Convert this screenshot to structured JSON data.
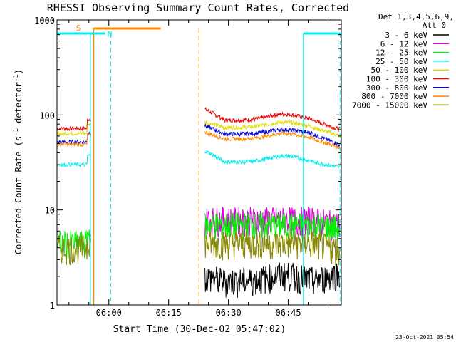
{
  "chart_data": {
    "type": "line",
    "title": "RHESSI Observing Summary Count Rates, Corrected",
    "xlabel": "Start Time (30-Dec-02 05:47:02)",
    "ylabel_pre": "Corrected Count Rate (s",
    "ylabel_sup": "-1",
    "ylabel_post": " detector",
    "ylabel_sup2": "-1",
    "ylabel_end": ")",
    "y_scale": "log",
    "ylim": [
      1,
      1000
    ],
    "xlim_minutes_after_0547": [
      0,
      71.3
    ],
    "x_ticks": [
      {
        "label": "06:00",
        "t": 13
      },
      {
        "label": "06:15",
        "t": 28
      },
      {
        "label": "06:30",
        "t": 43
      },
      {
        "label": "06:45",
        "t": 58
      },
      {
        "label": "07:00",
        "t": 73
      },
      {
        "label": "07:15",
        "t": 88
      }
    ],
    "y_ticks": [
      {
        "label": "1",
        "v": 1
      },
      {
        "label": "10",
        "v": 10
      },
      {
        "label": "100",
        "v": 100
      },
      {
        "label": "1000",
        "v": 1000
      }
    ],
    "legend_header": [
      "Det 1,3,4,5,6,9,",
      "Att 0"
    ],
    "legend": [
      {
        "name": "3 - 6 keV",
        "color": "#000000"
      },
      {
        "name": "6 - 12 keV",
        "color": "#dd00dd"
      },
      {
        "name": "12 - 25 keV",
        "color": "#00ee00"
      },
      {
        "name": "25 - 50 keV",
        "color": "#00eeee"
      },
      {
        "name": "50 - 100 keV",
        "color": "#dddd00"
      },
      {
        "name": "100 - 300 keV",
        "color": "#ee0000"
      },
      {
        "name": "300 - 800 keV",
        "color": "#0000dd"
      },
      {
        "name": "800 - 7000 keV",
        "color": "#ff8800"
      },
      {
        "name": "7000 - 15000 keV",
        "color": "#888800"
      }
    ],
    "annotations": {
      "saa_label": "S",
      "night_label": "N",
      "saa_bar_color": "#ff8800",
      "night_bar_color": "#00eeee"
    },
    "series_levels": [
      {
        "band": "100 - 300 keV",
        "pre_gap": 72,
        "post_start": 115,
        "post_mid": 88,
        "post_bump": 102,
        "post_end": 70
      },
      {
        "band": "50 - 100 keV",
        "pre_gap": 64,
        "post_start": 84,
        "post_mid": 74,
        "post_bump": 84,
        "post_end": 60
      },
      {
        "band": "300 - 800 keV",
        "pre_gap": 52,
        "post_start": 77,
        "post_mid": 63,
        "post_bump": 70,
        "post_end": 48
      },
      {
        "band": "800 - 7000 keV",
        "pre_gap": 49,
        "post_start": 66,
        "post_mid": 56,
        "post_bump": 64,
        "post_end": 45
      },
      {
        "band": "25 - 50 keV",
        "pre_gap": 30,
        "post_start": 42,
        "post_mid": 32,
        "post_bump": 37,
        "post_end": 28
      },
      {
        "band": "6 - 12 keV",
        "pre_gap": null,
        "post_start": 8,
        "post_mid": 8,
        "post_bump": 8,
        "post_end": 7
      },
      {
        "band": "12 - 25 keV",
        "pre_gap": 4.5,
        "post_start": 7,
        "post_mid": 7,
        "post_bump": 7,
        "post_end": 6.5
      },
      {
        "band": "7000 - 15000 keV",
        "pre_gap": 4,
        "post_start": 4.5,
        "post_mid": 4.5,
        "post_bump": 4.5,
        "post_end": 3.8
      },
      {
        "band": "3 - 6 keV",
        "pre_gap": null,
        "post_start": 2,
        "post_mid": 1.8,
        "post_bump": 2.1,
        "post_end": 2.2
      }
    ],
    "footer_date": "23-Oct-2021 05:54"
  }
}
